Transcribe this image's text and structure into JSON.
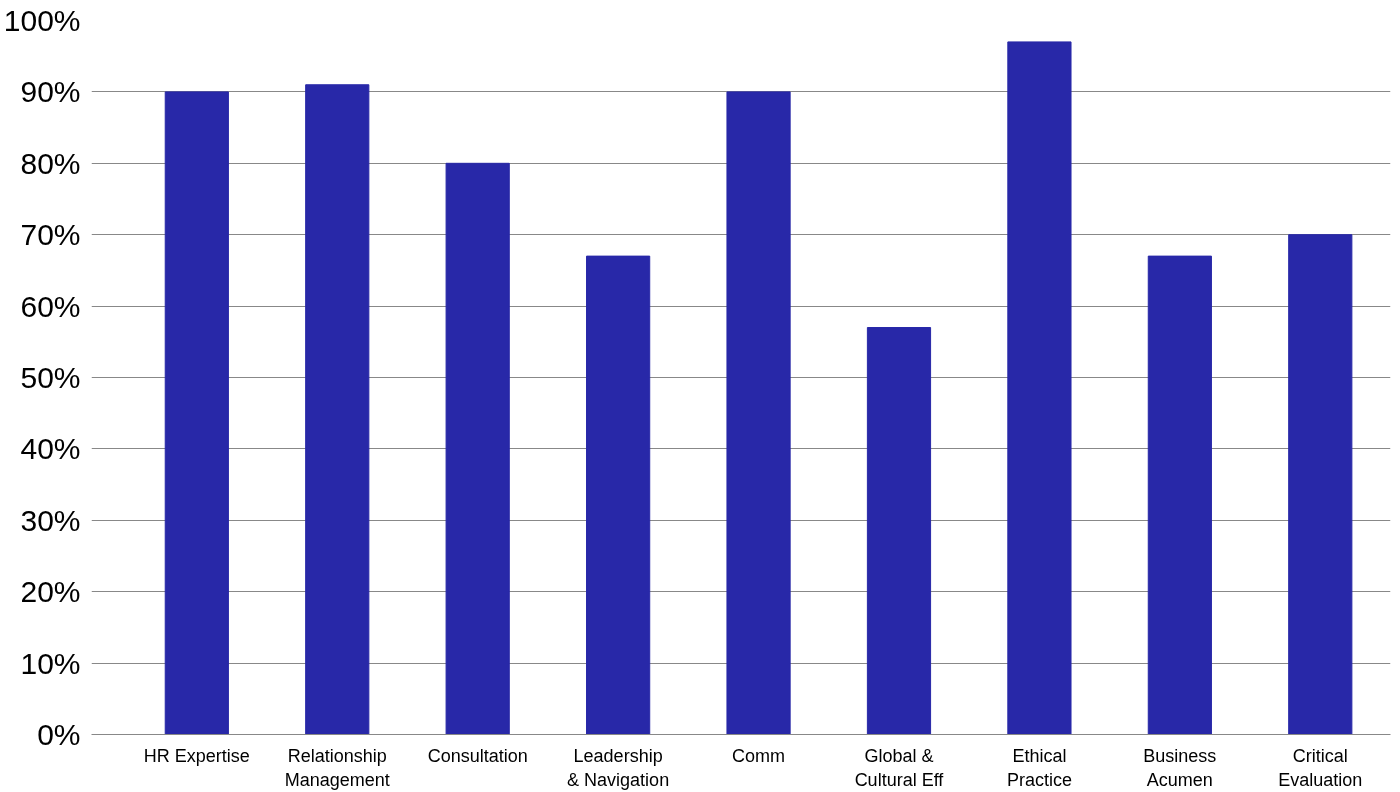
{
  "chart_data": {
    "type": "bar",
    "categories": [
      "HR Expertise",
      "Relationship\nManagement",
      "Consultation",
      "Leadership\n& Navigation",
      "Comm",
      "Global &\nCultural Eff",
      "Ethical\nPractice",
      "Business\nAcumen",
      "Critical\nEvaluation"
    ],
    "values": [
      90,
      91,
      80,
      67,
      90,
      57,
      97,
      67,
      70
    ],
    "color": "#2828a8",
    "ylim": [
      0,
      100
    ],
    "yticks": [
      {
        "value": 0,
        "label": "0%"
      },
      {
        "value": 10,
        "label": "10%"
      },
      {
        "value": 20,
        "label": "20%"
      },
      {
        "value": 30,
        "label": "30%"
      },
      {
        "value": 40,
        "label": "40%"
      },
      {
        "value": 50,
        "label": "50%"
      },
      {
        "value": 60,
        "label": "60%"
      },
      {
        "value": 70,
        "label": "70%"
      },
      {
        "value": 80,
        "label": "80%"
      },
      {
        "value": 90,
        "label": "90%"
      },
      {
        "value": 100,
        "label": "100%"
      }
    ],
    "grid": "y"
  }
}
